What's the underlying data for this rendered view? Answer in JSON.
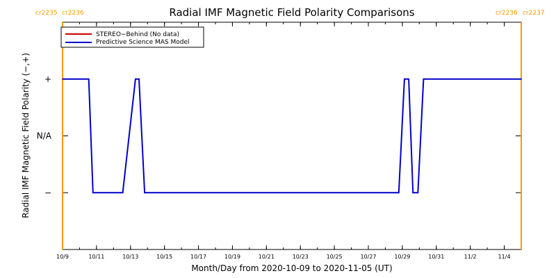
{
  "chart_data": {
    "type": "line",
    "title": "Radial IMF Magnetic Field Polarity Comparisons",
    "xlabel": "Month/Day from 2020-10-09 to 2020-11-05 (UT)",
    "ylabel": "Radial IMF Magnetic Field Polarity (−,+)",
    "x_start": "2020-10-09",
    "x_end": "2020-11-05",
    "x_ticks": [
      {
        "date": "2020-10-09",
        "label": "10/9"
      },
      {
        "date": "2020-10-11",
        "label": "10/11"
      },
      {
        "date": "2020-10-13",
        "label": "10/13"
      },
      {
        "date": "2020-10-15",
        "label": "10/15"
      },
      {
        "date": "2020-10-17",
        "label": "10/17"
      },
      {
        "date": "2020-10-19",
        "label": "10/19"
      },
      {
        "date": "2020-10-21",
        "label": "10/21"
      },
      {
        "date": "2020-10-23",
        "label": "10/23"
      },
      {
        "date": "2020-10-25",
        "label": "10/25"
      },
      {
        "date": "2020-10-27",
        "label": "10/27"
      },
      {
        "date": "2020-10-29",
        "label": "10/29"
      },
      {
        "date": "2020-10-31",
        "label": "10/31"
      },
      {
        "date": "2020-11-02",
        "label": "11/2"
      },
      {
        "date": "2020-11-04",
        "label": "11/4"
      }
    ],
    "y_categories": [
      {
        "value": 1,
        "label": "+"
      },
      {
        "value": 0,
        "label": "N/A"
      },
      {
        "value": -1,
        "label": "−"
      }
    ],
    "ylim": [
      -2,
      2
    ],
    "carrington_markers": [
      {
        "date": "2020-10-09",
        "left_label": "cr2235",
        "right_label": "cr2236"
      },
      {
        "date": "2020-11-05",
        "left_label": "cr2236",
        "right_label": "cr2237"
      }
    ],
    "legend_position": "top-left",
    "series": [
      {
        "name": "STEREO−Behind (No data)",
        "color": "#cc0000",
        "points": []
      },
      {
        "name": "Predictive Science MAS Model",
        "color": "#0000cc",
        "points": [
          {
            "x": "2020-10-09T00:00",
            "y": 1
          },
          {
            "x": "2020-10-10T13:00",
            "y": 1
          },
          {
            "x": "2020-10-10T19:00",
            "y": -1
          },
          {
            "x": "2020-10-12T13:00",
            "y": -1
          },
          {
            "x": "2020-10-13T07:00",
            "y": 1
          },
          {
            "x": "2020-10-13T12:00",
            "y": 1
          },
          {
            "x": "2020-10-13T20:00",
            "y": -1
          },
          {
            "x": "2020-10-28T19:00",
            "y": -1
          },
          {
            "x": "2020-10-29T03:00",
            "y": 1
          },
          {
            "x": "2020-10-29T09:00",
            "y": 1
          },
          {
            "x": "2020-10-29T15:00",
            "y": -1
          },
          {
            "x": "2020-10-29T22:00",
            "y": -1
          },
          {
            "x": "2020-10-30T06:00",
            "y": 1
          },
          {
            "x": "2020-11-05T00:00",
            "y": 1
          }
        ]
      }
    ]
  }
}
